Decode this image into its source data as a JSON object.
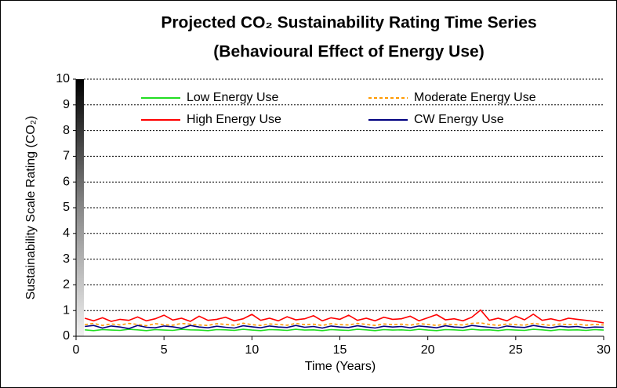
{
  "chart_data": {
    "type": "line",
    "title": "Projected CO₂ Sustainability Rating Time Series",
    "subtitle": "(Behavioural Effect of Energy Use)",
    "x_label": "Time (Years)",
    "y_label": "Sustainability Scale Rating (CO₂)",
    "xlim": [
      0,
      30
    ],
    "xticks": [
      0,
      5,
      10,
      15,
      20,
      25,
      30
    ],
    "ylim": [
      0,
      10
    ],
    "yticks": [
      0,
      1,
      2,
      3,
      4,
      5,
      6,
      7,
      8,
      9,
      10
    ],
    "grid": true,
    "legend": "top",
    "x": [
      0.5,
      1,
      1.5,
      2,
      2.5,
      3,
      3.5,
      4,
      4.5,
      5,
      5.5,
      6,
      6.5,
      7,
      7.5,
      8,
      8.5,
      9,
      9.5,
      10,
      10.5,
      11,
      11.5,
      12,
      12.5,
      13,
      13.5,
      14,
      14.5,
      15,
      15.5,
      16,
      16.5,
      17,
      17.5,
      18,
      18.5,
      19,
      19.5,
      20,
      20.5,
      21,
      21.5,
      22,
      22.5,
      23,
      23.5,
      24,
      24.5,
      25,
      25.5,
      26,
      26.5,
      27,
      27.5,
      28,
      28.5,
      29,
      29.5,
      30
    ],
    "series": [
      {
        "name": "Low Energy Use",
        "color": "#22dd22",
        "linestyle": "solid",
        "values": [
          0.25,
          0.22,
          0.26,
          0.24,
          0.23,
          0.27,
          0.25,
          0.22,
          0.26,
          0.24,
          0.23,
          0.27,
          0.25,
          0.24,
          0.22,
          0.26,
          0.25,
          0.23,
          0.27,
          0.24,
          0.22,
          0.26,
          0.25,
          0.23,
          0.27,
          0.24,
          0.25,
          0.22,
          0.26,
          0.24,
          0.23,
          0.27,
          0.25,
          0.22,
          0.26,
          0.24,
          0.25,
          0.23,
          0.27,
          0.24,
          0.22,
          0.26,
          0.25,
          0.23,
          0.27,
          0.24,
          0.25,
          0.22,
          0.26,
          0.24,
          0.23,
          0.27,
          0.25,
          0.22,
          0.26,
          0.24,
          0.25,
          0.23,
          0.26,
          0.24
        ]
      },
      {
        "name": "Moderate Energy Use",
        "color": "#ff9900",
        "linestyle": "dashed",
        "values": [
          0.45,
          0.5,
          0.42,
          0.48,
          0.44,
          0.5,
          0.46,
          0.41,
          0.49,
          0.45,
          0.43,
          0.5,
          0.47,
          0.44,
          0.42,
          0.49,
          0.46,
          0.43,
          0.51,
          0.45,
          0.42,
          0.48,
          0.46,
          0.43,
          0.5,
          0.45,
          0.47,
          0.42,
          0.49,
          0.45,
          0.44,
          0.5,
          0.46,
          0.42,
          0.48,
          0.45,
          0.47,
          0.43,
          0.49,
          0.46,
          0.42,
          0.48,
          0.45,
          0.44,
          0.5,
          0.52,
          0.46,
          0.42,
          0.48,
          0.45,
          0.43,
          0.5,
          0.46,
          0.42,
          0.48,
          0.45,
          0.47,
          0.43,
          0.46,
          0.44
        ]
      },
      {
        "name": "High Energy Use",
        "color": "#ff0000",
        "linestyle": "solid",
        "values": [
          0.7,
          0.6,
          0.72,
          0.58,
          0.66,
          0.62,
          0.75,
          0.6,
          0.68,
          0.82,
          0.63,
          0.7,
          0.58,
          0.78,
          0.62,
          0.66,
          0.74,
          0.6,
          0.68,
          0.85,
          0.62,
          0.7,
          0.6,
          0.76,
          0.64,
          0.68,
          0.8,
          0.6,
          0.72,
          0.66,
          0.82,
          0.62,
          0.7,
          0.6,
          0.74,
          0.66,
          0.68,
          0.78,
          0.6,
          0.72,
          0.84,
          0.64,
          0.68,
          0.6,
          0.74,
          1.02,
          0.62,
          0.7,
          0.6,
          0.78,
          0.64,
          0.86,
          0.62,
          0.68,
          0.6,
          0.7,
          0.66,
          0.62,
          0.58,
          0.52
        ]
      },
      {
        "name": "CW Energy Use",
        "color": "#000080",
        "linestyle": "solid",
        "values": [
          0.38,
          0.42,
          0.32,
          0.4,
          0.36,
          0.3,
          0.42,
          0.35,
          0.33,
          0.4,
          0.37,
          0.31,
          0.42,
          0.36,
          0.33,
          0.39,
          0.35,
          0.32,
          0.41,
          0.37,
          0.33,
          0.4,
          0.36,
          0.34,
          0.42,
          0.35,
          0.38,
          0.32,
          0.4,
          0.36,
          0.34,
          0.41,
          0.36,
          0.32,
          0.39,
          0.36,
          0.38,
          0.33,
          0.4,
          0.37,
          0.33,
          0.41,
          0.36,
          0.34,
          0.42,
          0.38,
          0.35,
          0.32,
          0.4,
          0.36,
          0.34,
          0.42,
          0.37,
          0.33,
          0.39,
          0.36,
          0.38,
          0.33,
          0.36,
          0.35
        ]
      }
    ]
  }
}
